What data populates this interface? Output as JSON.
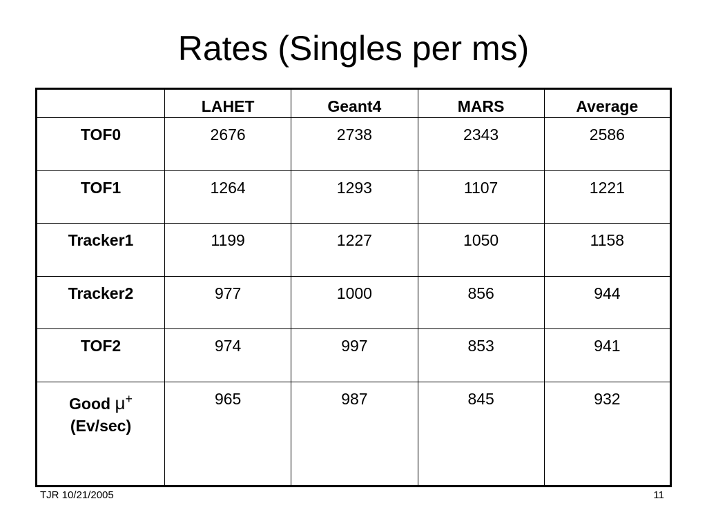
{
  "slide": {
    "title": "Rates (Singles per ms)"
  },
  "table": {
    "corner": "",
    "headers": [
      "LAHET",
      "Geant4",
      "MARS",
      "Average"
    ],
    "rows": [
      {
        "label": "TOF0",
        "values": [
          "2676",
          "2738",
          "2343",
          "2586"
        ]
      },
      {
        "label": "TOF1",
        "values": [
          "1264",
          "1293",
          "1107",
          "1221"
        ]
      },
      {
        "label": "Tracker1",
        "values": [
          "1199",
          "1227",
          "1050",
          "1158"
        ]
      },
      {
        "label": "Tracker2",
        "values": [
          "977",
          "1000",
          "856",
          "944"
        ]
      },
      {
        "label": "TOF2",
        "values": [
          "974",
          "997",
          "853",
          "941"
        ]
      },
      {
        "label_line1": "Good",
        "label_symbol": "μ",
        "label_superscript": "+",
        "label_line2": "(Ev/sec)",
        "values": [
          "965",
          "987",
          "845",
          "932"
        ]
      }
    ]
  },
  "footer": {
    "left": "TJR  10/21/2005",
    "right": "11"
  }
}
